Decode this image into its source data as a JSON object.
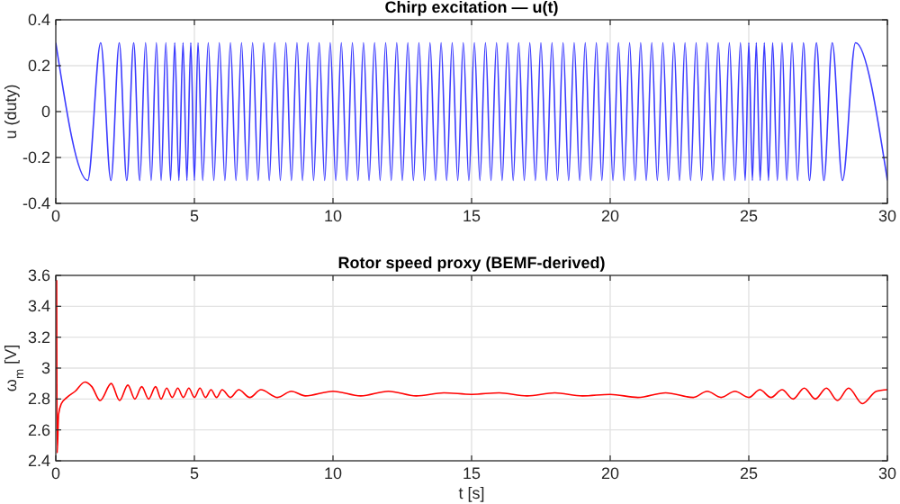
{
  "chart_data": [
    {
      "type": "line",
      "title": "Chirp excitation — u(t)",
      "ylabel": "u (duty)",
      "xlim": [
        0,
        30
      ],
      "xticks": [
        0,
        5,
        10,
        15,
        20,
        25,
        30
      ],
      "ylim": [
        -0.4,
        0.4
      ],
      "yticks": [
        -0.4,
        -0.2,
        0,
        0.2,
        0.4
      ],
      "grid": true,
      "x": [
        0,
        1.15,
        1.62,
        1.99,
        2.29,
        2.56,
        2.81,
        3.03,
        3.24,
        3.44,
        3.63,
        3.8,
        3.97,
        4.14,
        4.29,
        4.44,
        4.59,
        4.73,
        4.87,
        5.0,
        5.13,
        5.3,
        5.5,
        5.7,
        5.9,
        6.1,
        6.3,
        6.5,
        6.7,
        6.9,
        7.1,
        7.3,
        7.5,
        7.7,
        7.9,
        8.1,
        8.3,
        8.5,
        8.7,
        8.9,
        9.1,
        9.3,
        9.5,
        9.7,
        9.9,
        10.1,
        10.3,
        10.5,
        10.7,
        10.9,
        11.1,
        11.3,
        11.5,
        11.7,
        11.9,
        12.1,
        12.3,
        12.5,
        12.7,
        12.9,
        13.1,
        13.3,
        13.5,
        13.7,
        13.9,
        14.1,
        14.3,
        14.5,
        14.7,
        14.9,
        15.1,
        15.3,
        15.5,
        15.7,
        15.9,
        16.1,
        16.3,
        16.5,
        16.7,
        16.9,
        17.1,
        17.3,
        17.5,
        17.7,
        17.9,
        18.1,
        18.3,
        18.5,
        18.7,
        18.9,
        19.1,
        19.3,
        19.5,
        19.7,
        19.9,
        20.1,
        20.3,
        20.5,
        20.7,
        20.9,
        21.1,
        21.3,
        21.5,
        21.7,
        21.9,
        22.1,
        22.3,
        22.5,
        22.7,
        22.9,
        23.1,
        23.3,
        23.5,
        23.7,
        23.9,
        24.1,
        24.3,
        24.5,
        24.7,
        24.87,
        25.0,
        25.13,
        25.27,
        25.41,
        25.56,
        25.71,
        25.86,
        26.03,
        26.2,
        26.37,
        26.56,
        26.76,
        26.97,
        27.19,
        27.44,
        27.71,
        28.01,
        28.38,
        28.85,
        30
      ],
      "series": [
        {
          "color": "#3c3cff",
          "values": [
            0.3,
            -0.3,
            0.3,
            -0.3,
            0.3,
            -0.3,
            0.3,
            -0.3,
            0.3,
            -0.3,
            0.3,
            -0.3,
            0.3,
            -0.3,
            0.3,
            -0.3,
            0.3,
            -0.3,
            0.3,
            -0.3,
            0.3,
            -0.3,
            0.3,
            -0.3,
            0.3,
            -0.3,
            0.3,
            -0.3,
            0.3,
            -0.3,
            0.3,
            -0.3,
            0.3,
            -0.3,
            0.3,
            -0.3,
            0.3,
            -0.3,
            0.3,
            -0.3,
            0.3,
            -0.3,
            0.3,
            -0.3,
            0.3,
            -0.3,
            0.3,
            -0.3,
            0.3,
            -0.3,
            0.3,
            -0.3,
            0.3,
            -0.3,
            0.3,
            -0.3,
            0.3,
            -0.3,
            0.3,
            -0.3,
            0.3,
            -0.3,
            0.3,
            -0.3,
            0.3,
            -0.3,
            0.3,
            -0.3,
            0.3,
            -0.3,
            0.3,
            -0.3,
            0.3,
            -0.3,
            0.3,
            -0.3,
            0.3,
            -0.3,
            0.3,
            -0.3,
            0.3,
            -0.3,
            0.3,
            -0.3,
            0.3,
            -0.3,
            0.3,
            -0.3,
            0.3,
            -0.3,
            0.3,
            -0.3,
            0.3,
            -0.3,
            0.3,
            -0.3,
            0.3,
            -0.3,
            0.3,
            -0.3,
            0.3,
            -0.3,
            0.3,
            -0.3,
            0.3,
            -0.3,
            0.3,
            -0.3,
            0.3,
            -0.3,
            0.3,
            -0.3,
            0.3,
            -0.3,
            0.3,
            -0.3,
            0.3,
            -0.3,
            0.3,
            -0.3,
            0.3,
            -0.3,
            0.3,
            -0.3,
            0.3,
            -0.3,
            0.3,
            -0.3,
            0.3,
            -0.3,
            0.3,
            -0.3,
            0.3,
            -0.3,
            0.3,
            -0.3,
            0.3,
            -0.3,
            0.3,
            -0.3
          ]
        }
      ]
    },
    {
      "type": "line",
      "title": "Rotor speed proxy (BEMF-derived)",
      "xlabel": "t [s]",
      "ylabel": "ω$_{m}$ [V]",
      "xlim": [
        0,
        30
      ],
      "xticks": [
        0,
        5,
        10,
        15,
        20,
        25,
        30
      ],
      "ylim": [
        2.4,
        3.6
      ],
      "yticks": [
        2.4,
        2.6,
        2.8,
        {
          "value": 3,
          "label": "3"
        },
        3.2,
        3.4,
        3.6
      ],
      "grid": true,
      "x": [
        0.03,
        0.05,
        0.1,
        0.2,
        0.4,
        0.7,
        1.05,
        1.3,
        1.6,
        2.0,
        2.3,
        2.6,
        2.85,
        3.1,
        3.35,
        3.6,
        3.8,
        4.0,
        4.2,
        4.4,
        4.6,
        4.8,
        5.0,
        5.2,
        5.4,
        5.6,
        5.8,
        6,
        6.3,
        6.6,
        7,
        7.4,
        8,
        8.5,
        9,
        10,
        11,
        12,
        13,
        14,
        15,
        16,
        17,
        18,
        19,
        20,
        21,
        22,
        23,
        23.5,
        24,
        24.5,
        25,
        25.4,
        25.8,
        26.2,
        26.6,
        27,
        27.4,
        27.8,
        28.2,
        28.6,
        29.1,
        29.6,
        30
      ],
      "series": [
        {
          "color": "#ff0000",
          "values": [
            3.57,
            2.45,
            2.7,
            2.77,
            2.81,
            2.85,
            2.91,
            2.88,
            2.79,
            2.9,
            2.79,
            2.89,
            2.8,
            2.88,
            2.8,
            2.88,
            2.8,
            2.87,
            2.81,
            2.87,
            2.81,
            2.87,
            2.81,
            2.87,
            2.81,
            2.86,
            2.81,
            2.86,
            2.81,
            2.86,
            2.81,
            2.86,
            2.81,
            2.85,
            2.82,
            2.85,
            2.82,
            2.85,
            2.82,
            2.84,
            2.83,
            2.84,
            2.82,
            2.84,
            2.82,
            2.83,
            2.81,
            2.84,
            2.81,
            2.85,
            2.81,
            2.85,
            2.81,
            2.86,
            2.81,
            2.86,
            2.8,
            2.87,
            2.8,
            2.87,
            2.79,
            2.87,
            2.77,
            2.85,
            2.86
          ]
        }
      ]
    }
  ]
}
